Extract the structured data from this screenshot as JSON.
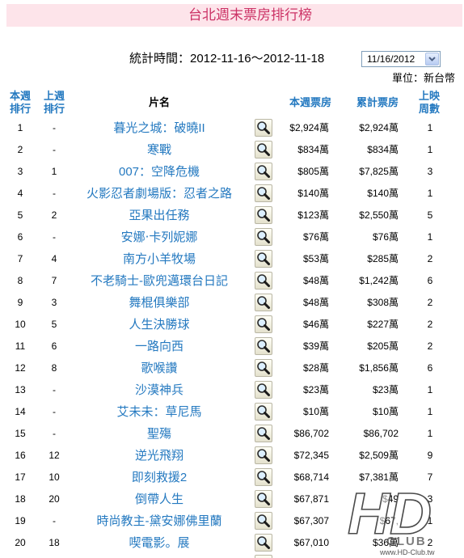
{
  "page": {
    "title": "台北週末票房排行榜",
    "stats_period": "統計時間：2012-11-16～2012-11-18",
    "date_select": {
      "value": "11/16/2012"
    },
    "unit": "單位：新台幣"
  },
  "table": {
    "headers": {
      "rank_top": "本週",
      "rank_bottom": "排行",
      "last_top": "上週",
      "last_bottom": "排行",
      "title": "片名",
      "week_gross": "本週票房",
      "total_gross": "累計票房",
      "weeks_top": "上映",
      "weeks_bottom": "周數"
    },
    "rows": [
      {
        "rank": "1",
        "last_week": "-",
        "title": "暮光之城：破曉II",
        "week_gross": "$2,924萬",
        "total_gross": "$2,924萬",
        "weeks": "1"
      },
      {
        "rank": "2",
        "last_week": "-",
        "title": "寒戰",
        "week_gross": "$834萬",
        "total_gross": "$834萬",
        "weeks": "1"
      },
      {
        "rank": "3",
        "last_week": "1",
        "title": "007：空降危機",
        "week_gross": "$805萬",
        "total_gross": "$7,825萬",
        "weeks": "3"
      },
      {
        "rank": "4",
        "last_week": "-",
        "title": "火影忍者劇場版：忍者之路",
        "week_gross": "$140萬",
        "total_gross": "$140萬",
        "weeks": "1"
      },
      {
        "rank": "5",
        "last_week": "2",
        "title": "亞果出任務",
        "week_gross": "$123萬",
        "total_gross": "$2,550萬",
        "weeks": "5"
      },
      {
        "rank": "6",
        "last_week": "-",
        "title": "安娜‧卡列妮娜",
        "week_gross": "$76萬",
        "total_gross": "$76萬",
        "weeks": "1"
      },
      {
        "rank": "7",
        "last_week": "4",
        "title": "南方小羊牧場",
        "week_gross": "$53萬",
        "total_gross": "$285萬",
        "weeks": "2"
      },
      {
        "rank": "8",
        "last_week": "7",
        "title": "不老騎士-歐兜邁環台日記",
        "week_gross": "$48萬",
        "total_gross": "$1,242萬",
        "weeks": "6"
      },
      {
        "rank": "9",
        "last_week": "3",
        "title": "舞棍俱樂部",
        "week_gross": "$48萬",
        "total_gross": "$308萬",
        "weeks": "2"
      },
      {
        "rank": "10",
        "last_week": "5",
        "title": "人生決勝球",
        "week_gross": "$46萬",
        "total_gross": "$227萬",
        "weeks": "2"
      },
      {
        "rank": "11",
        "last_week": "6",
        "title": "一路向西",
        "week_gross": "$39萬",
        "total_gross": "$205萬",
        "weeks": "2"
      },
      {
        "rank": "12",
        "last_week": "8",
        "title": "歌喉讚",
        "week_gross": "$28萬",
        "total_gross": "$1,856萬",
        "weeks": "6"
      },
      {
        "rank": "13",
        "last_week": "-",
        "title": "沙漠神兵",
        "week_gross": "$23萬",
        "total_gross": "$23萬",
        "weeks": "1"
      },
      {
        "rank": "14",
        "last_week": "-",
        "title": "艾未未：草尼馬",
        "week_gross": "$10萬",
        "total_gross": "$10萬",
        "weeks": "1"
      },
      {
        "rank": "15",
        "last_week": "-",
        "title": "聖殤",
        "week_gross": "$86,702",
        "total_gross": "$86,702",
        "weeks": "1"
      },
      {
        "rank": "16",
        "last_week": "12",
        "title": "逆光飛翔",
        "week_gross": "$72,345",
        "total_gross": "$2,509萬",
        "weeks": "9"
      },
      {
        "rank": "17",
        "last_week": "10",
        "title": "即刻救援2",
        "week_gross": "$68,714",
        "total_gross": "$7,381萬",
        "weeks": "7"
      },
      {
        "rank": "18",
        "last_week": "20",
        "title": "倒帶人生",
        "week_gross": "$67,871",
        "total_gross": "$49",
        "weeks": "3"
      },
      {
        "rank": "19",
        "last_week": "-",
        "title": "時尚教主-黛安娜佛里蘭",
        "week_gross": "$67,307",
        "total_gross": "$67,",
        "weeks": "1"
      },
      {
        "rank": "20",
        "last_week": "18",
        "title": "喫電影。展",
        "week_gross": "$67,010",
        "total_gross": "$36萬",
        "weeks": "2"
      }
    ]
  },
  "colors": {
    "title_bar_background": "#fde4ea",
    "title_text": "#cc3366",
    "link": "#2479c0",
    "header": "#2479c0"
  },
  "icons": {
    "row_action": "search-icon",
    "date_select_arrow": "chevron-down-icon"
  },
  "watermark": {
    "logo": "HD",
    "club": "CLUB",
    "url": "www.HD-Club.tw"
  }
}
